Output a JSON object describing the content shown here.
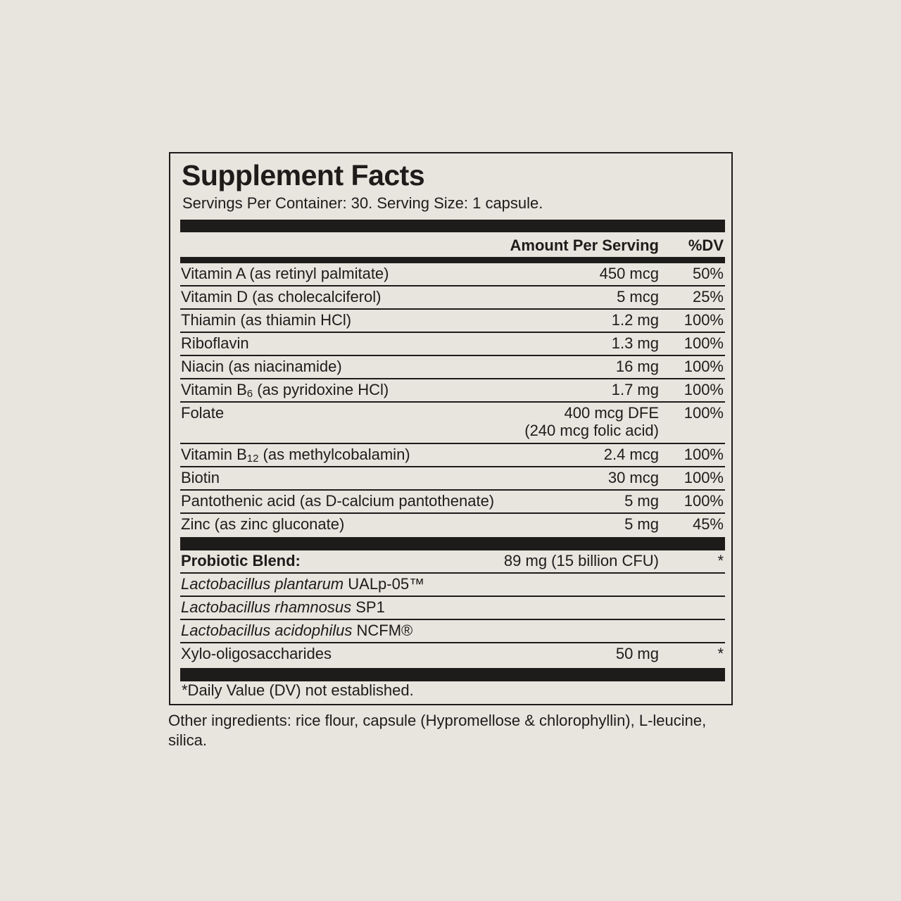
{
  "label": {
    "title": "Supplement Facts",
    "servings": "Servings Per Container: 30. Serving Size: 1 capsule.",
    "header_amount": "Amount Per Serving",
    "header_dv": "%DV",
    "vitamins": [
      {
        "name": "Vitamin A (as retinyl palmitate)",
        "sub": "",
        "rest": "",
        "amount": "450 mcg",
        "amount2": "",
        "dv": "50%"
      },
      {
        "name": "Vitamin D (as cholecalciferol)",
        "sub": "",
        "rest": "",
        "amount": "5 mcg",
        "amount2": "",
        "dv": "25%"
      },
      {
        "name": "Thiamin (as thiamin HCl)",
        "sub": "",
        "rest": "",
        "amount": "1.2 mg",
        "amount2": "",
        "dv": "100%"
      },
      {
        "name": "Riboflavin",
        "sub": "",
        "rest": "",
        "amount": "1.3 mg",
        "amount2": "",
        "dv": "100%"
      },
      {
        "name": "Niacin (as niacinamide)",
        "sub": "",
        "rest": "",
        "amount": "16 mg",
        "amount2": "",
        "dv": "100%"
      },
      {
        "name": "Vitamin B",
        "sub": "6",
        "rest": " (as pyridoxine HCl)",
        "amount": "1.7 mg",
        "amount2": "",
        "dv": "100%"
      },
      {
        "name": "Folate",
        "sub": "",
        "rest": "",
        "amount": "400 mcg DFE",
        "amount2": "(240 mcg folic acid)",
        "dv": "100%"
      },
      {
        "name": "Vitamin B",
        "sub": "12",
        "rest": " (as methylcobalamin)",
        "amount": "2.4 mcg",
        "amount2": "",
        "dv": "100%"
      },
      {
        "name": "Biotin",
        "sub": "",
        "rest": "",
        "amount": "30 mcg",
        "amount2": "",
        "dv": "100%"
      },
      {
        "name": "Pantothenic acid (as D-calcium pantothenate)",
        "sub": "",
        "rest": "",
        "amount": "5 mg",
        "amount2": "",
        "dv": "100%"
      },
      {
        "name": "Zinc (as zinc gluconate)",
        "sub": "",
        "rest": "",
        "amount": "5 mg",
        "amount2": "",
        "dv": "45%"
      }
    ],
    "probiotic": {
      "name": "Probiotic Blend:",
      "amount": "89 mg (15 billion CFU)",
      "dv": "*"
    },
    "strains": [
      {
        "italic": "Lactobacillus plantarum",
        "strain": " UALp-05™"
      },
      {
        "italic": "Lactobacillus rhamnosus",
        "strain": " SP1"
      },
      {
        "italic": "Lactobacillus acidophilus",
        "strain": " NCFM®"
      }
    ],
    "xylo": {
      "name": "Xylo-oligosaccharides",
      "amount": "50 mg",
      "dv": "*"
    },
    "footnote": "*Daily Value (DV) not established."
  },
  "other_ingredients": "Other ingredients: rice flour, capsule (Hypromellose & chlorophyllin), L-leucine, silica."
}
